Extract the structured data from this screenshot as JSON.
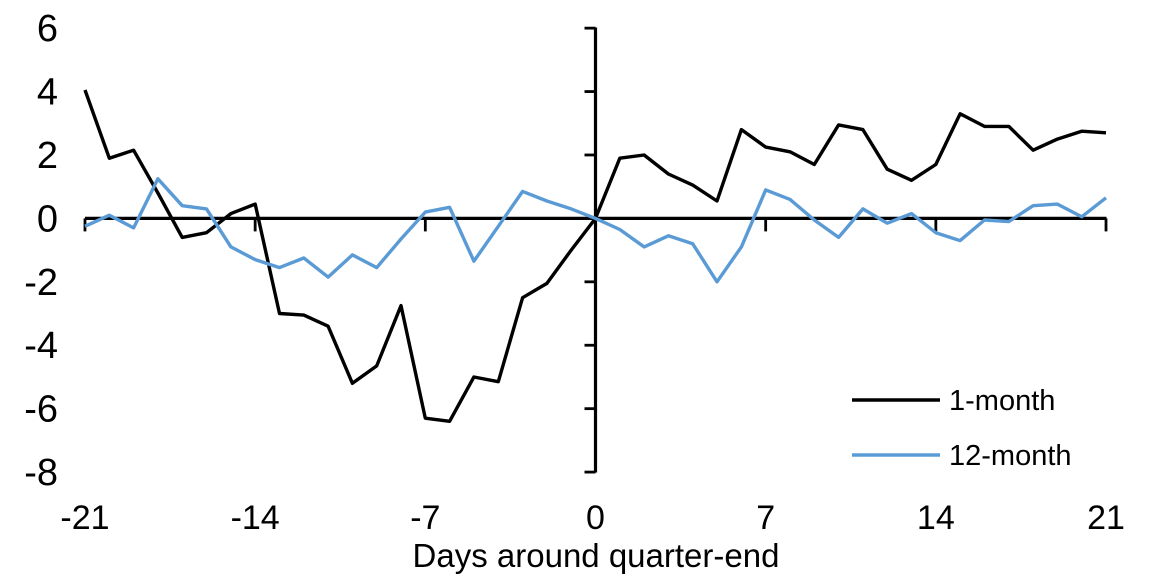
{
  "chart_data": {
    "type": "line",
    "title": "",
    "xlabel": "Days around quarter-end",
    "ylabel": "",
    "x": [
      -21,
      -20,
      -19,
      -18,
      -17,
      -16,
      -15,
      -14,
      -13,
      -12,
      -11,
      -10,
      -9,
      -8,
      -7,
      -6,
      -5,
      -4,
      -3,
      -2,
      -1,
      0,
      1,
      2,
      3,
      4,
      5,
      6,
      7,
      8,
      9,
      10,
      11,
      12,
      13,
      14,
      15,
      16,
      17,
      18,
      19,
      20,
      21
    ],
    "xlim": [
      -21,
      21
    ],
    "ylim": [
      -8,
      6
    ],
    "xticks": [
      -21,
      -14,
      -7,
      0,
      7,
      14,
      21
    ],
    "yticks": [
      6,
      4,
      2,
      0,
      -2,
      -4,
      -6,
      -8
    ],
    "grid": false,
    "legend_position": "inside-right",
    "axis_color": "#000000",
    "background_color": "#ffffff",
    "series": [
      {
        "name": "1-month",
        "color": "#000000",
        "values": [
          4.05,
          1.9,
          2.15,
          0.8,
          -0.6,
          -0.45,
          0.15,
          0.45,
          -3.0,
          -3.05,
          -3.4,
          -5.2,
          -4.65,
          -2.75,
          -6.3,
          -6.4,
          -5.0,
          -5.15,
          -2.5,
          -2.05,
          -1.0,
          0.0,
          1.9,
          2.0,
          1.4,
          1.05,
          0.55,
          2.8,
          2.25,
          2.1,
          1.7,
          2.95,
          2.8,
          1.55,
          1.2,
          1.7,
          3.3,
          2.9,
          2.9,
          2.15,
          2.5,
          2.75,
          2.7
        ]
      },
      {
        "name": "12-month",
        "color": "#5B9BD5",
        "values": [
          -0.25,
          0.1,
          -0.3,
          1.25,
          0.4,
          0.3,
          -0.9,
          -1.3,
          -1.55,
          -1.25,
          -1.85,
          -1.15,
          -1.55,
          -0.65,
          0.2,
          0.35,
          -1.35,
          -0.25,
          0.85,
          0.55,
          0.3,
          0.0,
          -0.35,
          -0.9,
          -0.55,
          -0.8,
          -2.0,
          -0.9,
          0.9,
          0.6,
          -0.05,
          -0.6,
          0.3,
          -0.15,
          0.15,
          -0.45,
          -0.7,
          -0.05,
          -0.1,
          0.4,
          0.45,
          0.05,
          0.65
        ]
      }
    ]
  }
}
